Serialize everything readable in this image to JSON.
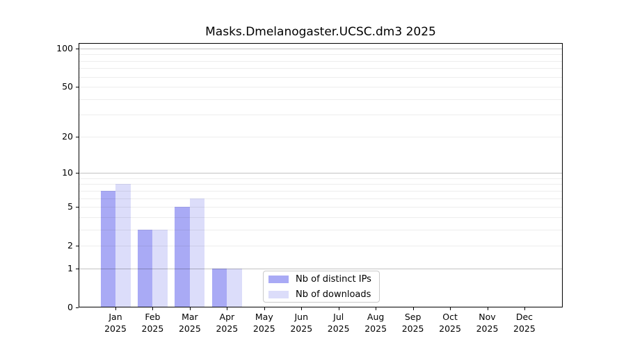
{
  "title": "Masks.Dmelanogaster.UCSC.dm3 2025",
  "colors": {
    "distinct_ips_bar": "#a9aaf5",
    "downloads_bar": "#dcddfa",
    "grid_minor": "rgba(0,0,0,0.07)",
    "grid_major": "rgba(0,0,0,0.24)",
    "spine": "#000000",
    "legend_border": "#c9c9c9"
  },
  "chart_data": {
    "type": "bar",
    "title": "Masks.Dmelanogaster.UCSC.dm3 2025",
    "categories": [
      "Jan",
      "Feb",
      "Mar",
      "Apr",
      "May",
      "Jun",
      "Jul",
      "Aug",
      "Sep",
      "Oct",
      "Nov",
      "Dec"
    ],
    "category_year": "2025",
    "series": [
      {
        "name": "Nb of distinct IPs",
        "color": "#a9aaf5",
        "values": [
          7,
          3,
          5,
          1,
          0,
          0,
          0,
          0,
          0,
          0,
          0,
          0
        ]
      },
      {
        "name": "Nb of downloads",
        "color": "#dcddfa",
        "values": [
          8,
          3,
          6,
          1,
          0,
          0,
          0,
          0,
          0,
          0,
          0,
          0
        ]
      }
    ],
    "yscale": "log10(1+y)",
    "yticks": [
      0,
      1,
      2,
      5,
      10,
      20,
      50,
      100
    ],
    "major_gridlines": [
      1,
      10,
      100
    ],
    "minor_gridlines": [
      2,
      3,
      4,
      5,
      6,
      7,
      8,
      9,
      20,
      30,
      40,
      50,
      60,
      70,
      80,
      90
    ],
    "ylim": [
      0,
      110
    ],
    "xlabel": "",
    "ylabel": "",
    "grid": true,
    "legend_position": "inside-bottom-center"
  },
  "legend": {
    "entries": [
      {
        "label": "Nb of distinct IPs"
      },
      {
        "label": "Nb of downloads"
      }
    ]
  }
}
